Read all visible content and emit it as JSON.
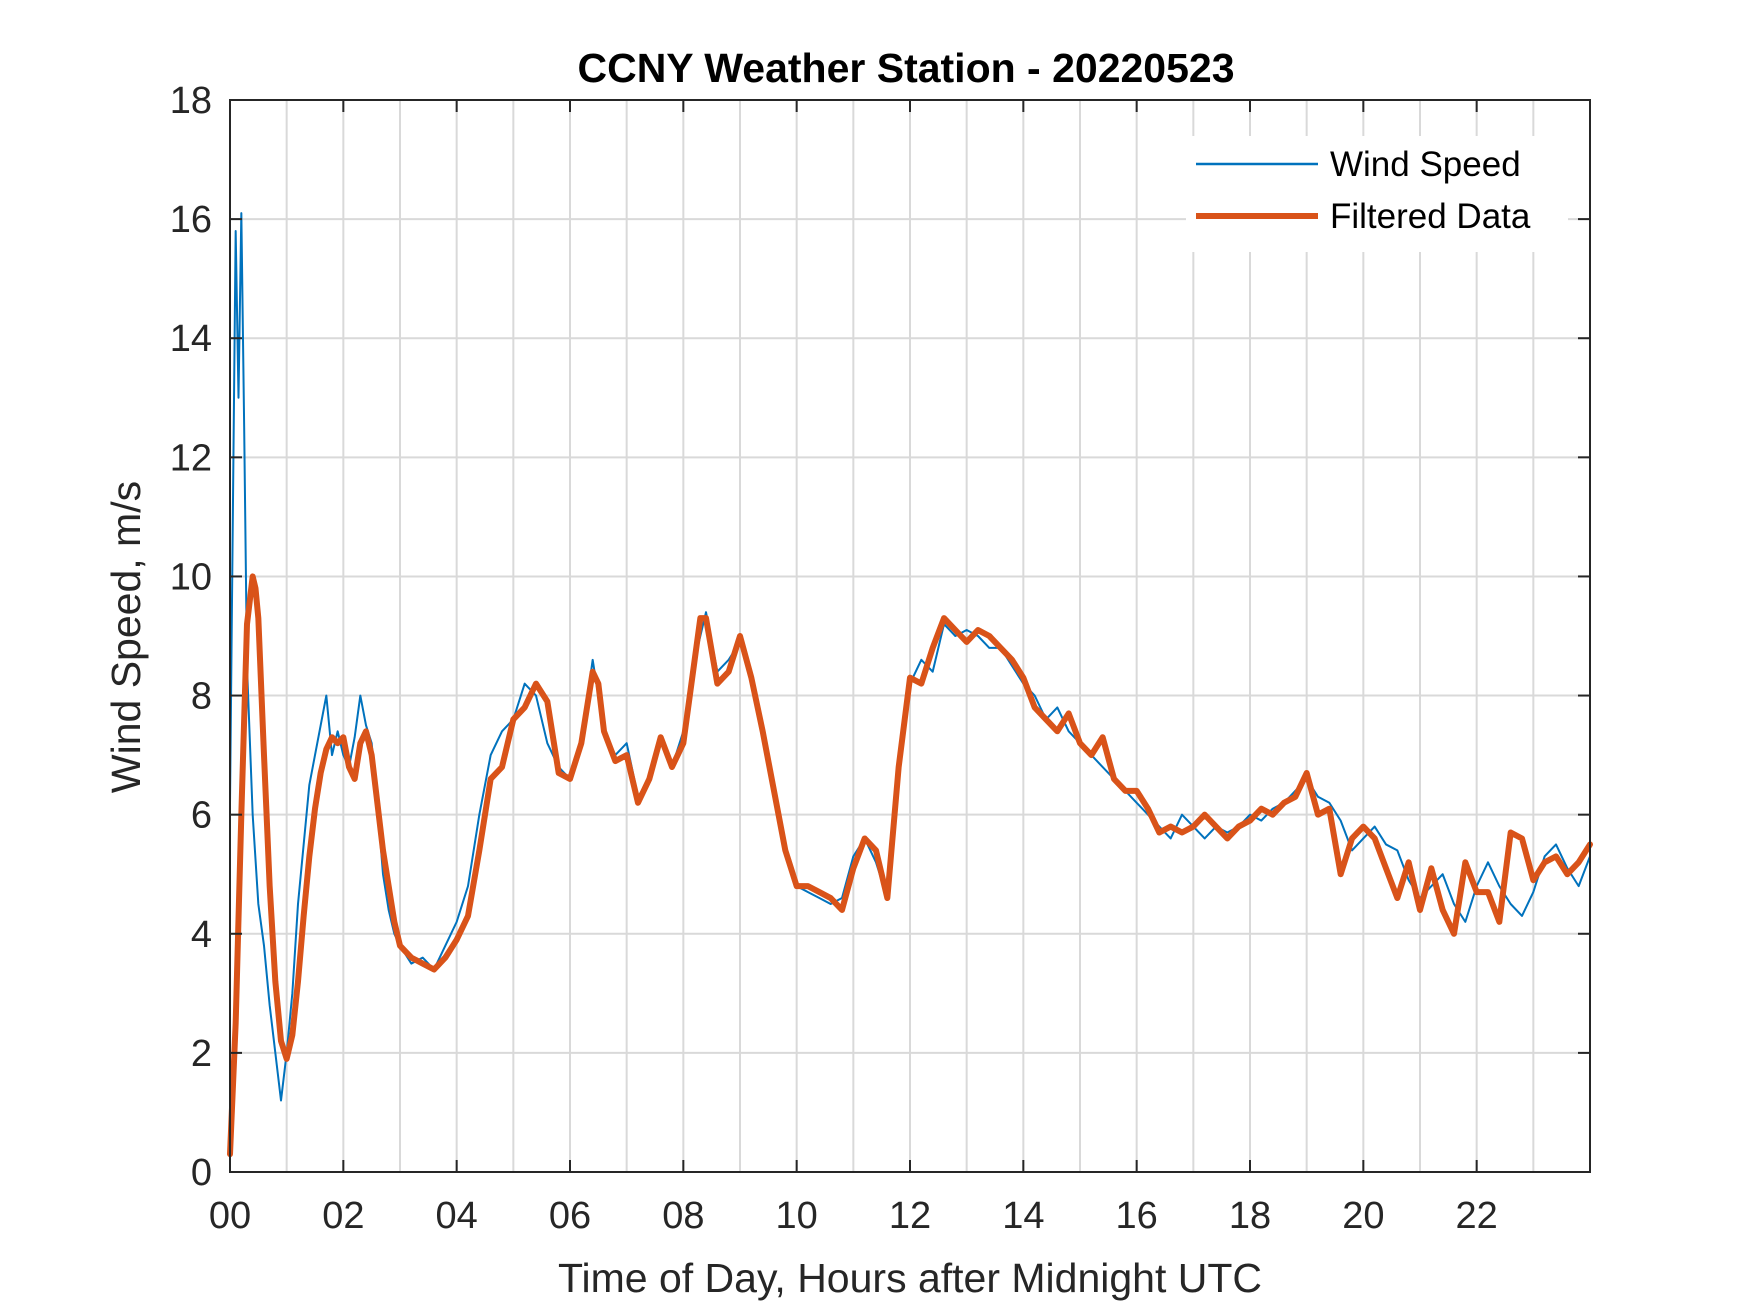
{
  "chart_data": {
    "type": "line",
    "title": "CCNY Weather Station - 20220523",
    "xlabel": "Time of Day, Hours after Midnight UTC",
    "ylabel": "Wind Speed, m/s",
    "xlim": [
      0,
      24
    ],
    "ylim": [
      0,
      18
    ],
    "grid": true,
    "legend_position": "top-right",
    "xtick_labels": [
      "00",
      "02",
      "04",
      "06",
      "08",
      "10",
      "12",
      "14",
      "16",
      "18",
      "20",
      "22"
    ],
    "xtick_values": [
      0,
      2,
      4,
      6,
      8,
      10,
      12,
      14,
      16,
      18,
      20,
      22
    ],
    "ytick_values": [
      0,
      2,
      4,
      6,
      8,
      10,
      12,
      14,
      16,
      18
    ],
    "ytick_labels": [
      "0",
      "2",
      "4",
      "6",
      "8",
      "10",
      "12",
      "14",
      "16",
      "18"
    ],
    "series": [
      {
        "name": "Wind Speed",
        "color": "#0072BD",
        "style": "thin",
        "x": [
          0,
          0.1,
          0.15,
          0.2,
          0.25,
          0.3,
          0.4,
          0.5,
          0.6,
          0.7,
          0.8,
          0.9,
          1.0,
          1.1,
          1.2,
          1.3,
          1.4,
          1.5,
          1.6,
          1.7,
          1.8,
          1.9,
          2.0,
          2.1,
          2.2,
          2.3,
          2.4,
          2.5,
          2.6,
          2.7,
          2.8,
          2.9,
          3.0,
          3.2,
          3.4,
          3.6,
          3.8,
          4.0,
          4.2,
          4.4,
          4.6,
          4.8,
          5.0,
          5.2,
          5.4,
          5.6,
          5.8,
          6.0,
          6.2,
          6.4,
          6.6,
          6.8,
          7.0,
          7.2,
          7.4,
          7.6,
          7.8,
          8.0,
          8.2,
          8.4,
          8.6,
          8.8,
          9.0,
          9.2,
          9.4,
          9.6,
          9.8,
          10.0,
          10.2,
          10.4,
          10.6,
          10.8,
          11.0,
          11.2,
          11.4,
          11.6,
          11.8,
          12.0,
          12.2,
          12.4,
          12.6,
          12.8,
          13.0,
          13.2,
          13.4,
          13.6,
          13.8,
          14.0,
          14.2,
          14.4,
          14.6,
          14.8,
          15.0,
          15.2,
          15.4,
          15.6,
          15.8,
          16.0,
          16.2,
          16.4,
          16.6,
          16.8,
          17.0,
          17.2,
          17.4,
          17.6,
          17.8,
          18.0,
          18.2,
          18.4,
          18.6,
          18.8,
          19.0,
          19.2,
          19.4,
          19.6,
          19.8,
          20.0,
          20.2,
          20.4,
          20.6,
          20.8,
          21.0,
          21.2,
          21.4,
          21.6,
          21.8,
          22.0,
          22.2,
          22.4,
          22.6,
          22.8,
          23.0,
          23.2,
          23.4,
          23.6,
          23.8,
          24.0
        ],
        "values": [
          6.2,
          15.8,
          13.0,
          16.1,
          12.5,
          8.5,
          6.0,
          4.5,
          3.8,
          2.8,
          2.0,
          1.2,
          2.0,
          3.0,
          4.5,
          5.5,
          6.5,
          7.0,
          7.5,
          8.0,
          7.0,
          7.4,
          7.0,
          6.8,
          7.3,
          8.0,
          7.5,
          7.2,
          6.2,
          5.0,
          4.4,
          4.0,
          3.8,
          3.5,
          3.6,
          3.4,
          3.8,
          4.2,
          4.8,
          6.0,
          7.0,
          7.4,
          7.6,
          8.2,
          8.0,
          7.2,
          6.8,
          6.6,
          7.2,
          8.6,
          7.4,
          7.0,
          7.2,
          6.3,
          6.6,
          7.3,
          6.8,
          7.4,
          8.6,
          9.4,
          8.4,
          8.6,
          8.9,
          8.2,
          7.4,
          6.4,
          5.4,
          4.8,
          4.7,
          4.6,
          4.5,
          4.6,
          5.3,
          5.6,
          5.2,
          4.6,
          6.8,
          8.2,
          8.6,
          8.4,
          9.2,
          9.0,
          9.1,
          9.0,
          8.8,
          8.8,
          8.5,
          8.2,
          8.0,
          7.6,
          7.8,
          7.4,
          7.2,
          7.0,
          6.8,
          6.6,
          6.4,
          6.2,
          6.0,
          5.8,
          5.6,
          6.0,
          5.8,
          5.6,
          5.8,
          5.7,
          5.8,
          6.0,
          5.9,
          6.1,
          6.2,
          6.4,
          6.6,
          6.3,
          6.2,
          5.9,
          5.4,
          5.6,
          5.8,
          5.5,
          5.4,
          4.9,
          4.6,
          4.8,
          5.0,
          4.5,
          4.2,
          4.8,
          5.2,
          4.8,
          4.5,
          4.3,
          4.7,
          5.3,
          5.5,
          5.1,
          4.8,
          5.3
        ]
      },
      {
        "name": "Filtered Data",
        "color": "#D95319",
        "style": "thick",
        "x": [
          0,
          0.1,
          0.2,
          0.3,
          0.4,
          0.45,
          0.5,
          0.6,
          0.7,
          0.8,
          0.9,
          1.0,
          1.1,
          1.2,
          1.3,
          1.4,
          1.5,
          1.6,
          1.7,
          1.8,
          1.9,
          2.0,
          2.1,
          2.2,
          2.3,
          2.4,
          2.5,
          2.6,
          2.7,
          2.8,
          2.9,
          3.0,
          3.1,
          3.2,
          3.4,
          3.6,
          3.7,
          3.8,
          4.0,
          4.2,
          4.4,
          4.6,
          4.8,
          5.0,
          5.2,
          5.4,
          5.6,
          5.8,
          6.0,
          6.2,
          6.4,
          6.5,
          6.6,
          6.8,
          7.0,
          7.2,
          7.4,
          7.6,
          7.8,
          8.0,
          8.2,
          8.3,
          8.4,
          8.6,
          8.8,
          9.0,
          9.2,
          9.4,
          9.6,
          9.8,
          10.0,
          10.2,
          10.4,
          10.6,
          10.8,
          11.0,
          11.2,
          11.4,
          11.6,
          11.8,
          12.0,
          12.2,
          12.4,
          12.6,
          12.8,
          13.0,
          13.2,
          13.4,
          13.6,
          13.8,
          14.0,
          14.2,
          14.4,
          14.6,
          14.8,
          15.0,
          15.2,
          15.4,
          15.6,
          15.8,
          16.0,
          16.2,
          16.4,
          16.6,
          16.8,
          17.0,
          17.2,
          17.4,
          17.6,
          17.8,
          18.0,
          18.2,
          18.4,
          18.6,
          18.8,
          19.0,
          19.2,
          19.4,
          19.6,
          19.8,
          20.0,
          20.2,
          20.4,
          20.6,
          20.8,
          21.0,
          21.2,
          21.4,
          21.6,
          21.8,
          22.0,
          22.2,
          22.4,
          22.6,
          22.8,
          23.0,
          23.2,
          23.4,
          23.6,
          23.8,
          24.0
        ],
        "values": [
          0.3,
          2.5,
          6.0,
          9.2,
          10.0,
          9.8,
          9.3,
          7.0,
          4.8,
          3.2,
          2.2,
          1.9,
          2.3,
          3.2,
          4.3,
          5.3,
          6.1,
          6.7,
          7.1,
          7.3,
          7.2,
          7.3,
          6.8,
          6.6,
          7.2,
          7.4,
          7.0,
          6.2,
          5.4,
          4.8,
          4.2,
          3.8,
          3.7,
          3.6,
          3.5,
          3.4,
          3.5,
          3.6,
          3.9,
          4.3,
          5.4,
          6.6,
          6.8,
          7.6,
          7.8,
          8.2,
          7.9,
          6.7,
          6.6,
          7.2,
          8.4,
          8.2,
          7.4,
          6.9,
          7.0,
          6.2,
          6.6,
          7.3,
          6.8,
          7.2,
          8.6,
          9.3,
          9.3,
          8.2,
          8.4,
          9.0,
          8.3,
          7.4,
          6.4,
          5.4,
          4.8,
          4.8,
          4.7,
          4.6,
          4.4,
          5.1,
          5.6,
          5.4,
          4.6,
          6.8,
          8.3,
          8.2,
          8.8,
          9.3,
          9.1,
          8.9,
          9.1,
          9.0,
          8.8,
          8.6,
          8.3,
          7.8,
          7.6,
          7.4,
          7.7,
          7.2,
          7.0,
          7.3,
          6.6,
          6.4,
          6.4,
          6.1,
          5.7,
          5.8,
          5.7,
          5.8,
          6.0,
          5.8,
          5.6,
          5.8,
          5.9,
          6.1,
          6.0,
          6.2,
          6.3,
          6.7,
          6.0,
          6.1,
          5.0,
          5.6,
          5.8,
          5.6,
          5.1,
          4.6,
          5.2,
          4.4,
          5.1,
          4.4,
          4.0,
          5.2,
          4.7,
          4.7,
          4.2,
          5.7,
          5.6,
          4.9,
          5.2,
          5.3,
          5.0,
          5.2,
          5.5
        ]
      }
    ]
  }
}
